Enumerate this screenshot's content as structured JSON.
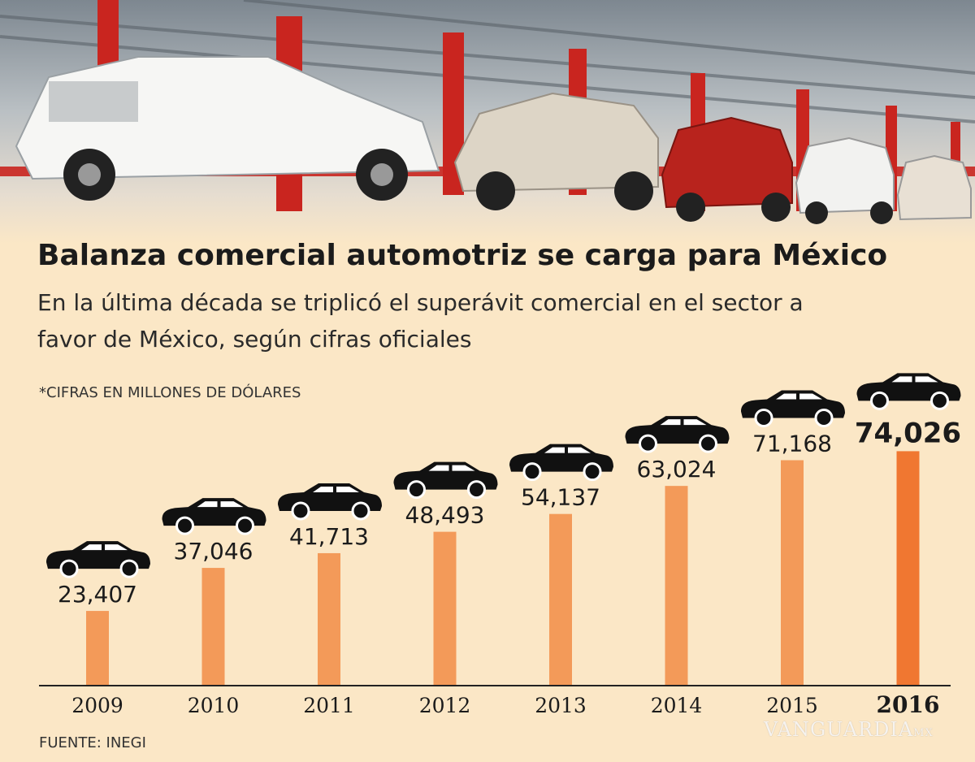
{
  "header": {
    "title": "Balanza comercial automotriz se carga para México",
    "subtitle": "En la última década se triplicó el superávit comercial en el sector a favor de México, según cifras oficiales",
    "unit_note": "*CIFRAS EN MILLONES DE DÓLARES"
  },
  "footer": {
    "source": "FUENTE: INEGI",
    "watermark": "VANGUARDIA",
    "watermark_suffix": "MX"
  },
  "colors": {
    "background": "#fbe7c6",
    "bar": "#f39a59",
    "bar_highlight": "#f07731",
    "car": "#111111",
    "text": "#1b1b1b"
  },
  "icons": {
    "car": "car-icon",
    "photo": "car-assembly-line-photo"
  },
  "chart_data": {
    "type": "bar",
    "categories": [
      "2009",
      "2010",
      "2011",
      "2012",
      "2013",
      "2014",
      "2015",
      "2016"
    ],
    "values": [
      23407,
      37046,
      41713,
      48493,
      54137,
      63024,
      71168,
      74026
    ],
    "value_labels": [
      "23,407",
      "37,046",
      "41,713",
      "48,493",
      "54,137",
      "63,024",
      "71,168",
      "74,026"
    ],
    "highlight": "2016",
    "title": "Balanza comercial automotriz se carga para México",
    "xlabel": "",
    "ylabel": "",
    "grid": false,
    "legend": "none"
  }
}
